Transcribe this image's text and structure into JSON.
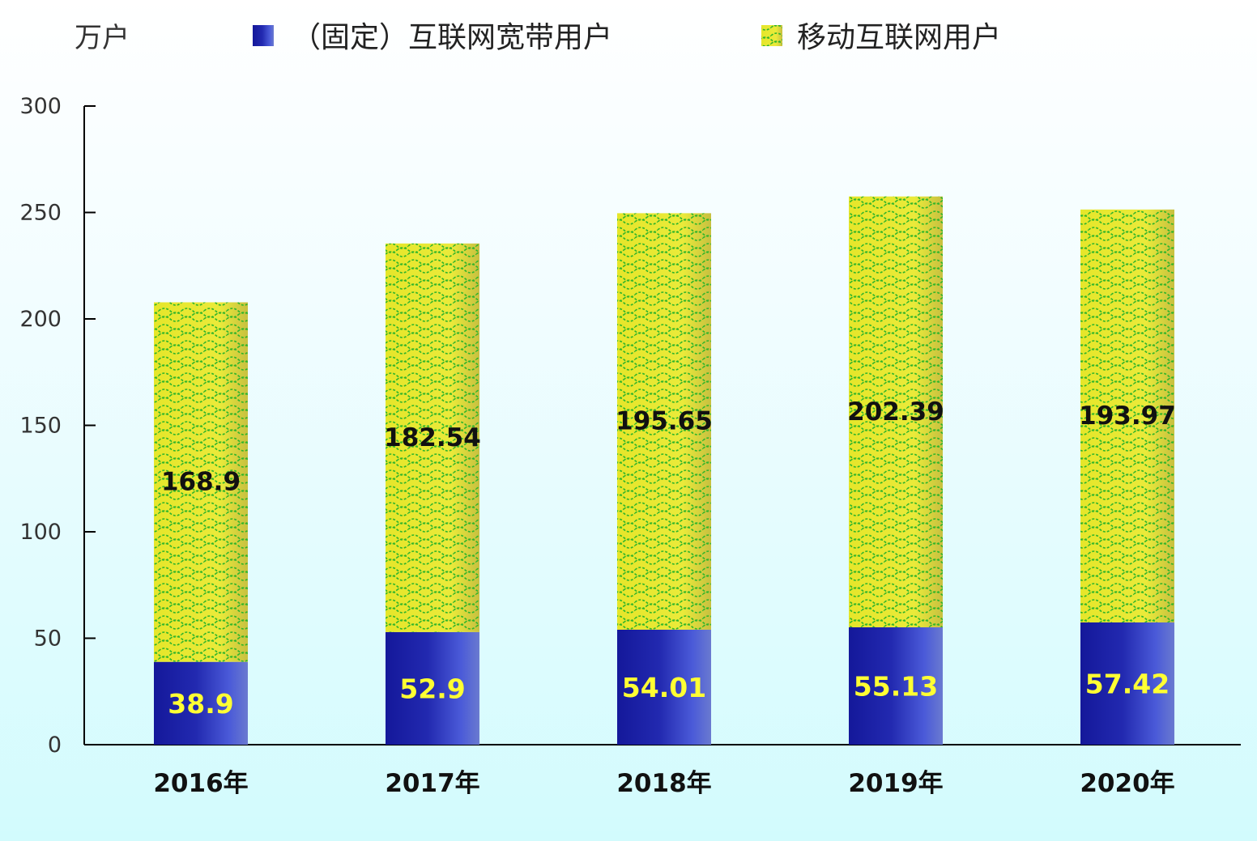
{
  "chart_data": {
    "type": "bar",
    "stacked": true,
    "unit_label": "万户",
    "categories": [
      "2016年",
      "2017年",
      "2018年",
      "2019年",
      "2020年"
    ],
    "series": [
      {
        "name": "（固定）互联网宽带用户",
        "values": [
          38.9,
          52.9,
          54.01,
          55.13,
          57.42
        ],
        "color": "#1c22a0",
        "value_color": "#ffff33"
      },
      {
        "name": "移动互联网用户",
        "values": [
          168.9,
          182.54,
          195.65,
          202.39,
          193.97
        ],
        "color": "#e8e830",
        "pattern_color": "#33bb22",
        "value_color": "#111111"
      }
    ],
    "ylim": [
      0,
      300
    ],
    "yticks": [
      0,
      50,
      100,
      150,
      200,
      250,
      300
    ],
    "grid": false,
    "legend_position": "top"
  }
}
